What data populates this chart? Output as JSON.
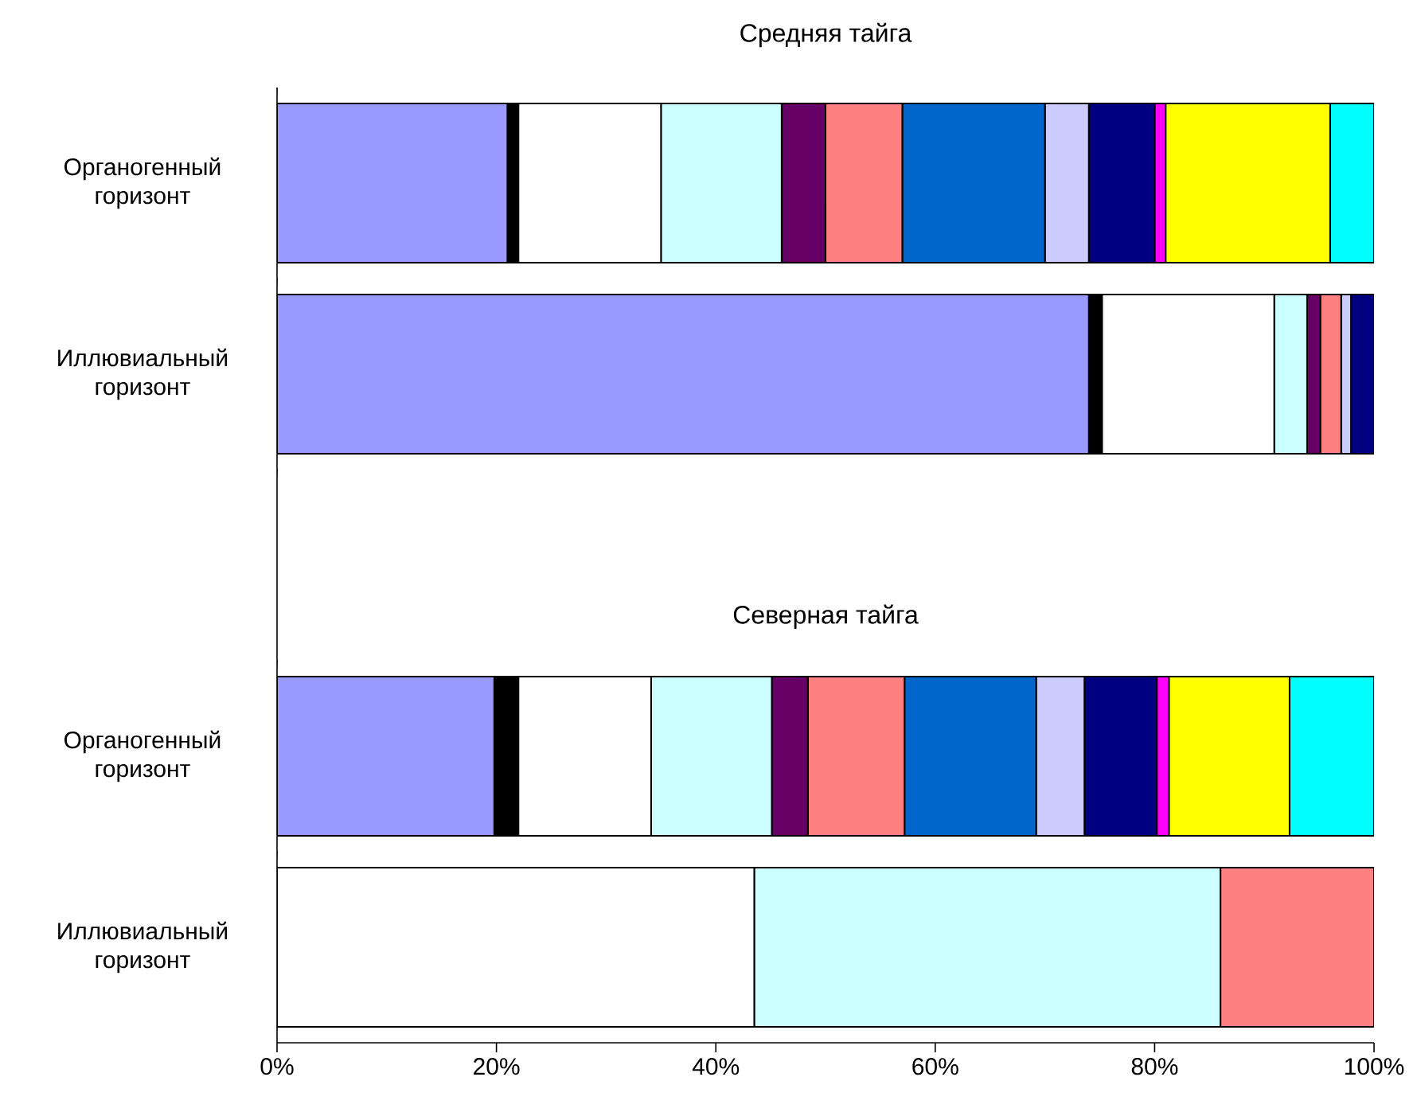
{
  "chart_data": {
    "type": "bar",
    "orientation": "horizontal",
    "stacked": true,
    "title": "Средняя тайга",
    "annotations": [
      "Северная тайга"
    ],
    "categories": [
      "Органогенный горизонт",
      "Иллювиальный горизонт",
      null,
      "Органогенный горизонт",
      "Иллювиальный горизонт"
    ],
    "series": [
      {
        "color": "#9999ff",
        "values": [
          21,
          74,
          null,
          19.8,
          0
        ]
      },
      {
        "color": "#000000",
        "values": [
          1,
          1.2,
          null,
          2.2,
          0
        ]
      },
      {
        "color": "#ffffff",
        "values": [
          13,
          15.7,
          null,
          12.1,
          43.5
        ]
      },
      {
        "color": "#ccffff",
        "values": [
          11,
          3,
          null,
          11,
          42.5
        ]
      },
      {
        "color": "#660066",
        "values": [
          4,
          1.2,
          null,
          3.3,
          0
        ]
      },
      {
        "color": "#ff8080",
        "values": [
          7,
          1.9,
          null,
          8.8,
          14
        ]
      },
      {
        "color": "#0066cc",
        "values": [
          13,
          0,
          null,
          12,
          0
        ]
      },
      {
        "color": "#ccccff",
        "values": [
          4,
          0.9,
          null,
          4.4,
          0
        ]
      },
      {
        "color": "#000080",
        "values": [
          6,
          2.1,
          null,
          6.6,
          0
        ]
      },
      {
        "color": "#ff00ff",
        "values": [
          1,
          0,
          null,
          1.1,
          0
        ]
      },
      {
        "color": "#ffff00",
        "values": [
          15,
          0,
          null,
          11,
          0
        ]
      },
      {
        "color": "#00ffff",
        "values": [
          4,
          0,
          null,
          7.7,
          0
        ]
      }
    ],
    "xlim": [
      0,
      100
    ],
    "xticks": [
      {
        "value": 0,
        "label": "0%"
      },
      {
        "value": 20,
        "label": "20%"
      },
      {
        "value": 40,
        "label": "40%"
      },
      {
        "value": 60,
        "label": "60%"
      },
      {
        "value": 80,
        "label": "80%"
      },
      {
        "value": 100,
        "label": "100%"
      }
    ],
    "tick_labels": "xy"
  }
}
